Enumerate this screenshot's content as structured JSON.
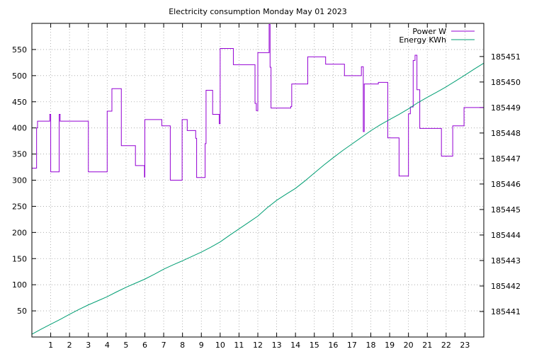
{
  "chart_data": {
    "type": "line",
    "title": "Electricity consumption Monday May 01 2023",
    "xlabel": "",
    "ylabel": "",
    "y2label": "",
    "xlim": [
      0,
      24
    ],
    "ylim": [
      0,
      600
    ],
    "y2lim": [
      185440.0,
      185452.3
    ],
    "x_ticks": [
      1,
      2,
      3,
      4,
      5,
      6,
      7,
      8,
      9,
      10,
      11,
      12,
      13,
      14,
      15,
      16,
      17,
      18,
      19,
      20,
      21,
      22,
      23
    ],
    "y_ticks": [
      50,
      100,
      150,
      200,
      250,
      300,
      350,
      400,
      450,
      500,
      550
    ],
    "y2_ticks": [
      185441,
      185442,
      185443,
      185444,
      185445,
      185446,
      185447,
      185448,
      185449,
      185450,
      185451
    ],
    "grid": true,
    "legend": "top-right",
    "series": [
      {
        "name": "Power W",
        "axis": "left",
        "color": "#9400d3",
        "step": true,
        "x": [
          0.0,
          0.25,
          0.3,
          0.95,
          1.0,
          1.45,
          1.5,
          1.75,
          3.0,
          3.95,
          4.0,
          4.25,
          4.75,
          5.0,
          5.5,
          5.98,
          6.0,
          6.9,
          7.35,
          7.45,
          7.9,
          7.98,
          8.25,
          8.7,
          8.75,
          9.2,
          9.25,
          9.3,
          9.6,
          9.95,
          10.0,
          10.7,
          11.85,
          11.92,
          12.0,
          12.6,
          12.65,
          12.7,
          13.5,
          13.75,
          13.8,
          14.65,
          15.6,
          16.6,
          17.5,
          17.6,
          17.65,
          18.4,
          18.9,
          19.5,
          20.0,
          20.1,
          20.25,
          20.35,
          20.45,
          20.6,
          21.75,
          22.3,
          22.35,
          22.95,
          24.0
        ],
        "y": [
          323,
          400,
          413,
          426,
          316,
          426,
          413,
          413,
          316,
          316,
          432,
          475,
          366,
          366,
          328,
          306,
          416,
          404,
          300,
          300,
          300,
          416,
          395,
          380,
          305,
          370,
          472,
          472,
          426,
          408,
          552,
          521,
          447,
          433,
          544,
          598,
          516,
          438,
          438,
          441,
          484,
          536,
          522,
          500,
          517,
          393,
          484,
          487,
          381,
          308,
          427,
          440,
          529,
          539,
          473,
          399,
          346,
          346,
          404,
          439,
          399
        ]
      },
      {
        "name": "Energy KWh",
        "axis": "right",
        "color": "#009e73",
        "step": false,
        "x": [
          0,
          0.5,
          1,
          1.5,
          2,
          2.5,
          3,
          3.5,
          4,
          4.5,
          5,
          5.5,
          6,
          6.5,
          7,
          7.5,
          8,
          8.5,
          9,
          9.5,
          10,
          10.5,
          11,
          11.5,
          12,
          12.5,
          13,
          13.5,
          14,
          14.5,
          15,
          15.5,
          16,
          16.5,
          17,
          17.5,
          18,
          18.5,
          19,
          19.5,
          20,
          20.5,
          21,
          21.5,
          22,
          22.5,
          23,
          23.5,
          24
        ],
        "y": [
          185440.11,
          185440.31,
          185440.5,
          185440.69,
          185440.89,
          185441.08,
          185441.26,
          185441.42,
          185441.58,
          185441.77,
          185441.95,
          185442.11,
          185442.27,
          185442.46,
          185442.66,
          185442.83,
          185442.99,
          185443.16,
          185443.33,
          185443.52,
          185443.73,
          185443.99,
          185444.24,
          185444.49,
          185444.74,
          185445.07,
          185445.36,
          185445.6,
          185445.83,
          185446.12,
          185446.43,
          185446.74,
          185447.03,
          185447.31,
          185447.57,
          185447.83,
          185448.09,
          185448.32,
          185448.53,
          185448.73,
          185448.95,
          185449.19,
          185449.4,
          185449.6,
          185449.81,
          185450.04,
          185450.27,
          185450.51,
          185450.74
        ]
      }
    ]
  }
}
